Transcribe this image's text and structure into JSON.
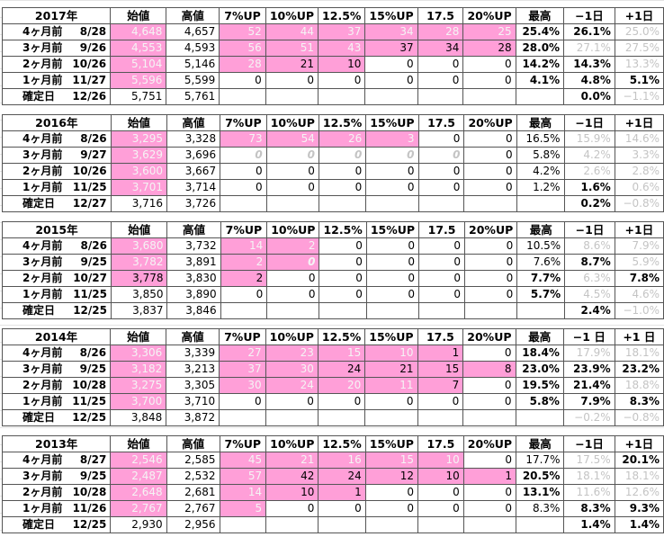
{
  "blocks": [
    {
      "header": [
        "2017年",
        "始値",
        "高値",
        "7%UP",
        "10%UP",
        "12.5%",
        "15%UP",
        "17.5",
        "20%UP",
        "最高",
        "−1日",
        "+1日"
      ],
      "rows": [
        {
          "label": "4ヶ月前",
          "date": "8/28",
          "cells": [
            "4,648",
            "4,657",
            "52",
            "44",
            "37",
            "34",
            "28",
            "25",
            "25.4%",
            "26.1%",
            "25.0%"
          ],
          "pink": [
            0,
            2,
            3,
            4,
            5,
            6,
            7
          ],
          "faint": [
            0,
            2,
            3,
            4,
            5,
            6,
            7,
            10
          ],
          "bold": [
            8,
            9
          ]
        },
        {
          "label": "3ヶ月前",
          "date": "9/26",
          "cells": [
            "4,553",
            "4,593",
            "56",
            "51",
            "43",
            "37",
            "34",
            "28",
            "28.0%",
            "27.1%",
            "27.5%"
          ],
          "pink": [
            0,
            2,
            3,
            4,
            5,
            6,
            7
          ],
          "faint": [
            0,
            2,
            3,
            4,
            9,
            10
          ],
          "bold": [
            8
          ]
        },
        {
          "label": "2ヶ月前",
          "date": "10/26",
          "cells": [
            "5,104",
            "5,146",
            "28",
            "21",
            "10",
            "0",
            "0",
            "0",
            "14.2%",
            "14.3%",
            "13.3%"
          ],
          "pink": [
            0,
            2,
            3,
            4
          ],
          "faint": [
            0,
            2,
            10
          ],
          "bold": [
            8,
            9
          ]
        },
        {
          "label": "1ヶ月前",
          "date": "11/27",
          "cells": [
            "5,596",
            "5,599",
            "0",
            "0",
            "0",
            "0",
            "0",
            "0",
            "4.1%",
            "4.8%",
            "5.1%"
          ],
          "pink": [
            0
          ],
          "faint": [
            0
          ],
          "bold": [
            8,
            9,
            10
          ]
        },
        {
          "label": "確定日",
          "date": "12/26",
          "cells": [
            "5,751",
            "5,761",
            null,
            null,
            null,
            null,
            null,
            null,
            null,
            "0.0%",
            "−1.1%"
          ],
          "pink": [],
          "faint": [
            10
          ],
          "bold": [
            9
          ]
        }
      ]
    },
    {
      "header": [
        "2016年",
        "始値",
        "高値",
        "7%UP",
        "10%UP",
        "12.5%",
        "15%UP",
        "17.5",
        "20%UP",
        "最高",
        "−1日",
        "+1日"
      ],
      "rows": [
        {
          "label": "4ヶ月前",
          "date": "8/26",
          "cells": [
            "3,295",
            "3,328",
            "73",
            "54",
            "26",
            "3",
            "0",
            "0",
            "16.5%",
            "15.9%",
            "14.6%"
          ],
          "pink": [
            0,
            2,
            3,
            4,
            5
          ],
          "faint": [
            0,
            2,
            3,
            4,
            5,
            9,
            10
          ],
          "bold": []
        },
        {
          "label": "3ヶ月前",
          "date": "9/27",
          "cells": [
            "3,629",
            "3,696",
            "0",
            "0",
            "0",
            "0",
            "0",
            "0",
            "5.8%",
            "4.2%",
            "3.3%"
          ],
          "pink": [
            0
          ],
          "faint": [
            0,
            2,
            3,
            4,
            5,
            6,
            9,
            10
          ],
          "bold": [
            2,
            3,
            4,
            5,
            6
          ],
          "italic": [
            2,
            3,
            4,
            5,
            6
          ]
        },
        {
          "label": "2ヶ月前",
          "date": "10/26",
          "cells": [
            "3,600",
            "3,667",
            "0",
            "0",
            "0",
            "0",
            "0",
            "0",
            "4.2%",
            "2.6%",
            "2.8%"
          ],
          "pink": [
            0
          ],
          "faint": [
            0,
            9,
            10
          ],
          "bold": []
        },
        {
          "label": "1ヶ月前",
          "date": "11/25",
          "cells": [
            "3,701",
            "3,714",
            "0",
            "0",
            "0",
            "0",
            "0",
            "0",
            "1.2%",
            "1.6%",
            "0.6%"
          ],
          "pink": [
            0
          ],
          "faint": [
            0,
            10
          ],
          "bold": [
            9
          ]
        },
        {
          "label": "確定日",
          "date": "12/27",
          "cells": [
            "3,716",
            "3,726",
            null,
            null,
            null,
            null,
            null,
            null,
            null,
            "0.2%",
            "−0.8%"
          ],
          "pink": [],
          "faint": [
            10
          ],
          "bold": [
            9
          ]
        }
      ]
    },
    {
      "header": [
        "2015年",
        "始値",
        "高値",
        "7%UP",
        "10%UP",
        "12.5%",
        "15%UP",
        "17.5",
        "20%UP",
        "最高",
        "−1日",
        "+1日"
      ],
      "rows": [
        {
          "label": "4ヶ月前",
          "date": "8/26",
          "cells": [
            "3,680",
            "3,732",
            "14",
            "2",
            "0",
            "0",
            "0",
            "0",
            "10.5%",
            "8.6%",
            "7.9%"
          ],
          "pink": [
            0,
            2,
            3
          ],
          "faint": [
            0,
            2,
            3,
            9,
            10
          ],
          "bold": []
        },
        {
          "label": "3ヶ月前",
          "date": "9/25",
          "cells": [
            "3,782",
            "3,891",
            "2",
            "0",
            "0",
            "0",
            "0",
            "0",
            "7.6%",
            "8.7%",
            "5.9%"
          ],
          "pink": [
            0,
            2,
            3
          ],
          "faint": [
            0,
            2,
            3,
            10
          ],
          "bold": [
            3,
            9
          ],
          "italic": [
            3
          ]
        },
        {
          "label": "2ヶ月前",
          "date": "10/27",
          "cells": [
            "3,778",
            "3,830",
            "2",
            "0",
            "0",
            "0",
            "0",
            "0",
            "7.7%",
            "6.3%",
            "7.8%"
          ],
          "pink": [
            0,
            2
          ],
          "faint": [
            9
          ],
          "bold": [
            8,
            10
          ]
        },
        {
          "label": "1ヶ月前",
          "date": "11/25",
          "cells": [
            "3,850",
            "3,890",
            "0",
            "0",
            "0",
            "0",
            "0",
            "0",
            "5.7%",
            "4.5%",
            "4.6%"
          ],
          "pink": [],
          "faint": [
            9,
            10
          ],
          "bold": [
            8
          ]
        },
        {
          "label": "確定日",
          "date": "12/25",
          "cells": [
            "3,837",
            "3,846",
            null,
            null,
            null,
            null,
            null,
            null,
            null,
            "2.4%",
            "−1.0%"
          ],
          "pink": [],
          "faint": [
            10
          ],
          "bold": [
            9
          ]
        }
      ]
    },
    {
      "header": [
        "2014年",
        "始値",
        "高値",
        "7%UP",
        "10%UP",
        "12.5%",
        "15%UP",
        "17.5",
        "20%UP",
        "最高",
        "−1 日",
        "+1 日"
      ],
      "rows": [
        {
          "label": "4ヶ月前",
          "date": "8/26",
          "cells": [
            "3,306",
            "3,339",
            "27",
            "23",
            "15",
            "10",
            "1",
            "0",
            "18.4%",
            "17.9%",
            "18.1%"
          ],
          "pink": [
            0,
            2,
            3,
            4,
            5,
            6
          ],
          "faint": [
            0,
            2,
            3,
            4,
            5,
            9,
            10
          ],
          "bold": [
            8
          ]
        },
        {
          "label": "3ヶ月前",
          "date": "9/25",
          "cells": [
            "3,182",
            "3,213",
            "37",
            "30",
            "24",
            "21",
            "15",
            "8",
            "23.0%",
            "23.9%",
            "23.2%"
          ],
          "pink": [
            0,
            2,
            3,
            4,
            5,
            6,
            7
          ],
          "faint": [
            0,
            2,
            3
          ],
          "bold": [
            8,
            9,
            10
          ]
        },
        {
          "label": "2ヶ月前",
          "date": "10/28",
          "cells": [
            "3,275",
            "3,305",
            "30",
            "24",
            "20",
            "11",
            "7",
            "0",
            "19.5%",
            "21.4%",
            "18.8%"
          ],
          "pink": [
            0,
            2,
            3,
            4,
            5,
            6
          ],
          "faint": [
            0,
            2,
            3,
            4,
            5,
            10
          ],
          "bold": [
            8,
            9
          ]
        },
        {
          "label": "1ヶ月前",
          "date": "11/25",
          "cells": [
            "3,700",
            "3,710",
            "0",
            "0",
            "0",
            "0",
            "0",
            "0",
            "5.8%",
            "7.9%",
            "8.3%"
          ],
          "pink": [
            0
          ],
          "faint": [
            0
          ],
          "bold": [
            8,
            9,
            10
          ]
        },
        {
          "label": "確定日",
          "date": "12/25",
          "cells": [
            "3,848",
            "3,872",
            null,
            null,
            null,
            null,
            null,
            null,
            null,
            "−0.2%",
            "−0.8%"
          ],
          "pink": [],
          "faint": [
            9,
            10
          ],
          "bold": []
        }
      ]
    },
    {
      "header": [
        "2013年",
        "始値",
        "高値",
        "7%UP",
        "10%UP",
        "12.5%",
        "15%UP",
        "17.5",
        "20%UP",
        "最高",
        "−1日",
        "+1日"
      ],
      "rows": [
        {
          "label": "4ヶ月前",
          "date": "8/27",
          "cells": [
            "2,546",
            "2,585",
            "45",
            "21",
            "16",
            "15",
            "10",
            "0",
            "17.7%",
            "17.5%",
            "20.1%"
          ],
          "pink": [
            0,
            2,
            3,
            4,
            5,
            6
          ],
          "faint": [
            0,
            2,
            3,
            4,
            5,
            6,
            9
          ],
          "bold": [
            10
          ]
        },
        {
          "label": "3ヶ月前",
          "date": "9/25",
          "cells": [
            "2,487",
            "2,532",
            "57",
            "42",
            "24",
            "12",
            "10",
            "1",
            "20.5%",
            "18.1%",
            "18.1%"
          ],
          "pink": [
            0,
            2,
            3,
            4,
            5,
            6,
            7
          ],
          "faint": [
            0,
            2,
            9,
            10
          ],
          "bold": [
            8
          ]
        },
        {
          "label": "2ヶ月前",
          "date": "10/28",
          "cells": [
            "2,648",
            "2,681",
            "14",
            "10",
            "1",
            "0",
            "0",
            "0",
            "13.1%",
            "11.6%",
            "12.6%"
          ],
          "pink": [
            0,
            2,
            3,
            4
          ],
          "faint": [
            0,
            2,
            9,
            10
          ],
          "bold": [
            8
          ]
        },
        {
          "label": "1ヶ月前",
          "date": "11/26",
          "cells": [
            "2,767",
            "2,767",
            "5",
            "0",
            "0",
            "0",
            "0",
            "0",
            "8.3%",
            "8.3%",
            "9.3%"
          ],
          "pink": [
            0,
            2
          ],
          "faint": [
            0,
            2
          ],
          "bold": [
            9,
            10
          ]
        },
        {
          "label": "確定日",
          "date": "12/25",
          "cells": [
            "2,930",
            "2,956",
            null,
            null,
            null,
            null,
            null,
            null,
            null,
            "1.4%",
            "1.4%"
          ],
          "pink": [],
          "faint": [],
          "bold": [
            9,
            10
          ]
        }
      ]
    }
  ]
}
